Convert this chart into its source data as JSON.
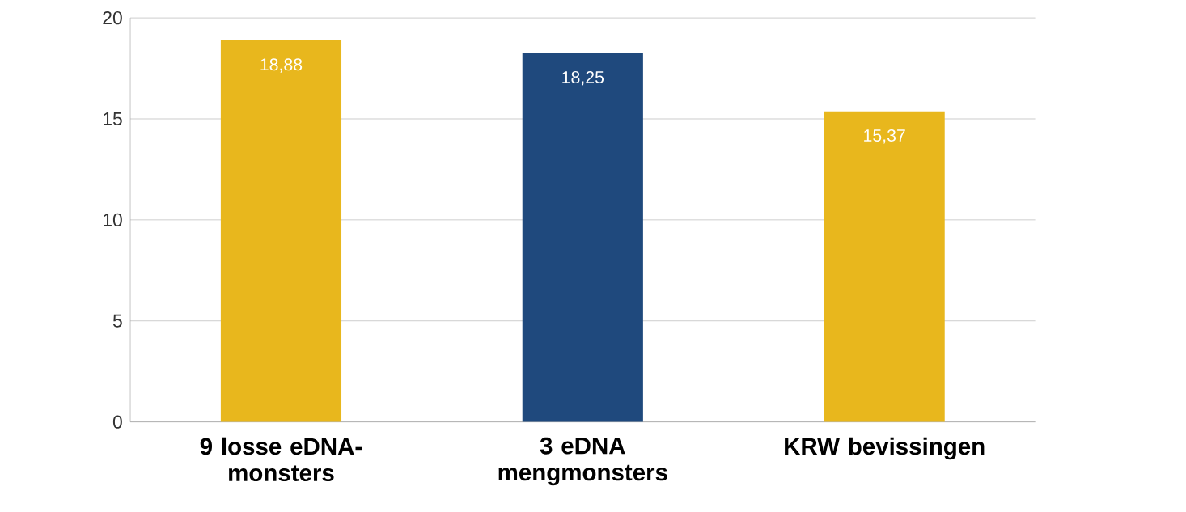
{
  "chart_data": {
    "type": "bar",
    "categories": [
      "9 losse eDNA-monsters",
      "3 eDNA mengmonsters",
      "KRW bevissingen"
    ],
    "values": [
      18.88,
      18.25,
      15.37
    ],
    "colors": [
      "#e8b71d",
      "#1f497d",
      "#e8b71d"
    ],
    "value_labels": [
      "18,88",
      "18,25",
      "15,37"
    ],
    "ylim": [
      0,
      20
    ],
    "yticks": [
      0,
      5,
      10,
      15,
      20
    ],
    "grid": "y"
  }
}
